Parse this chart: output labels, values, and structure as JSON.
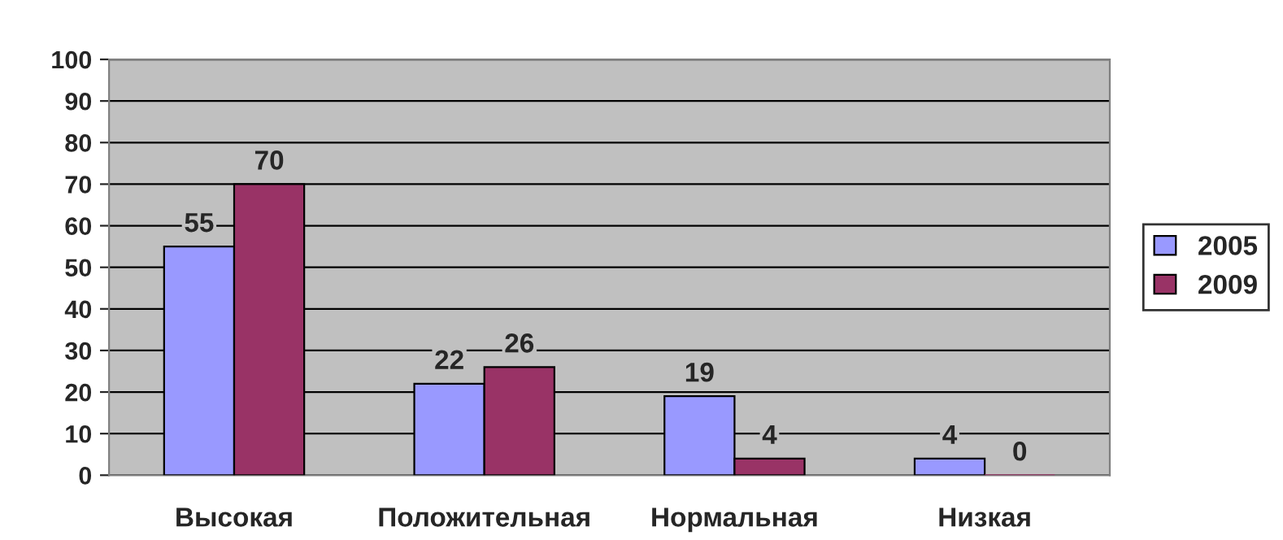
{
  "chart_data": {
    "type": "bar",
    "categories": [
      "Высокая",
      "Положительная",
      "Нормальная",
      "Низкая"
    ],
    "series": [
      {
        "name": "2005",
        "color": "#9999ff",
        "values": [
          55,
          22,
          19,
          4
        ]
      },
      {
        "name": "2009",
        "color": "#993366",
        "values": [
          70,
          26,
          4,
          0
        ]
      }
    ],
    "ylim": [
      0,
      100
    ],
    "yticks": [
      0,
      10,
      20,
      30,
      40,
      50,
      60,
      70,
      80,
      90,
      100
    ],
    "grid": "y",
    "legend": "right",
    "data_labels": true
  }
}
